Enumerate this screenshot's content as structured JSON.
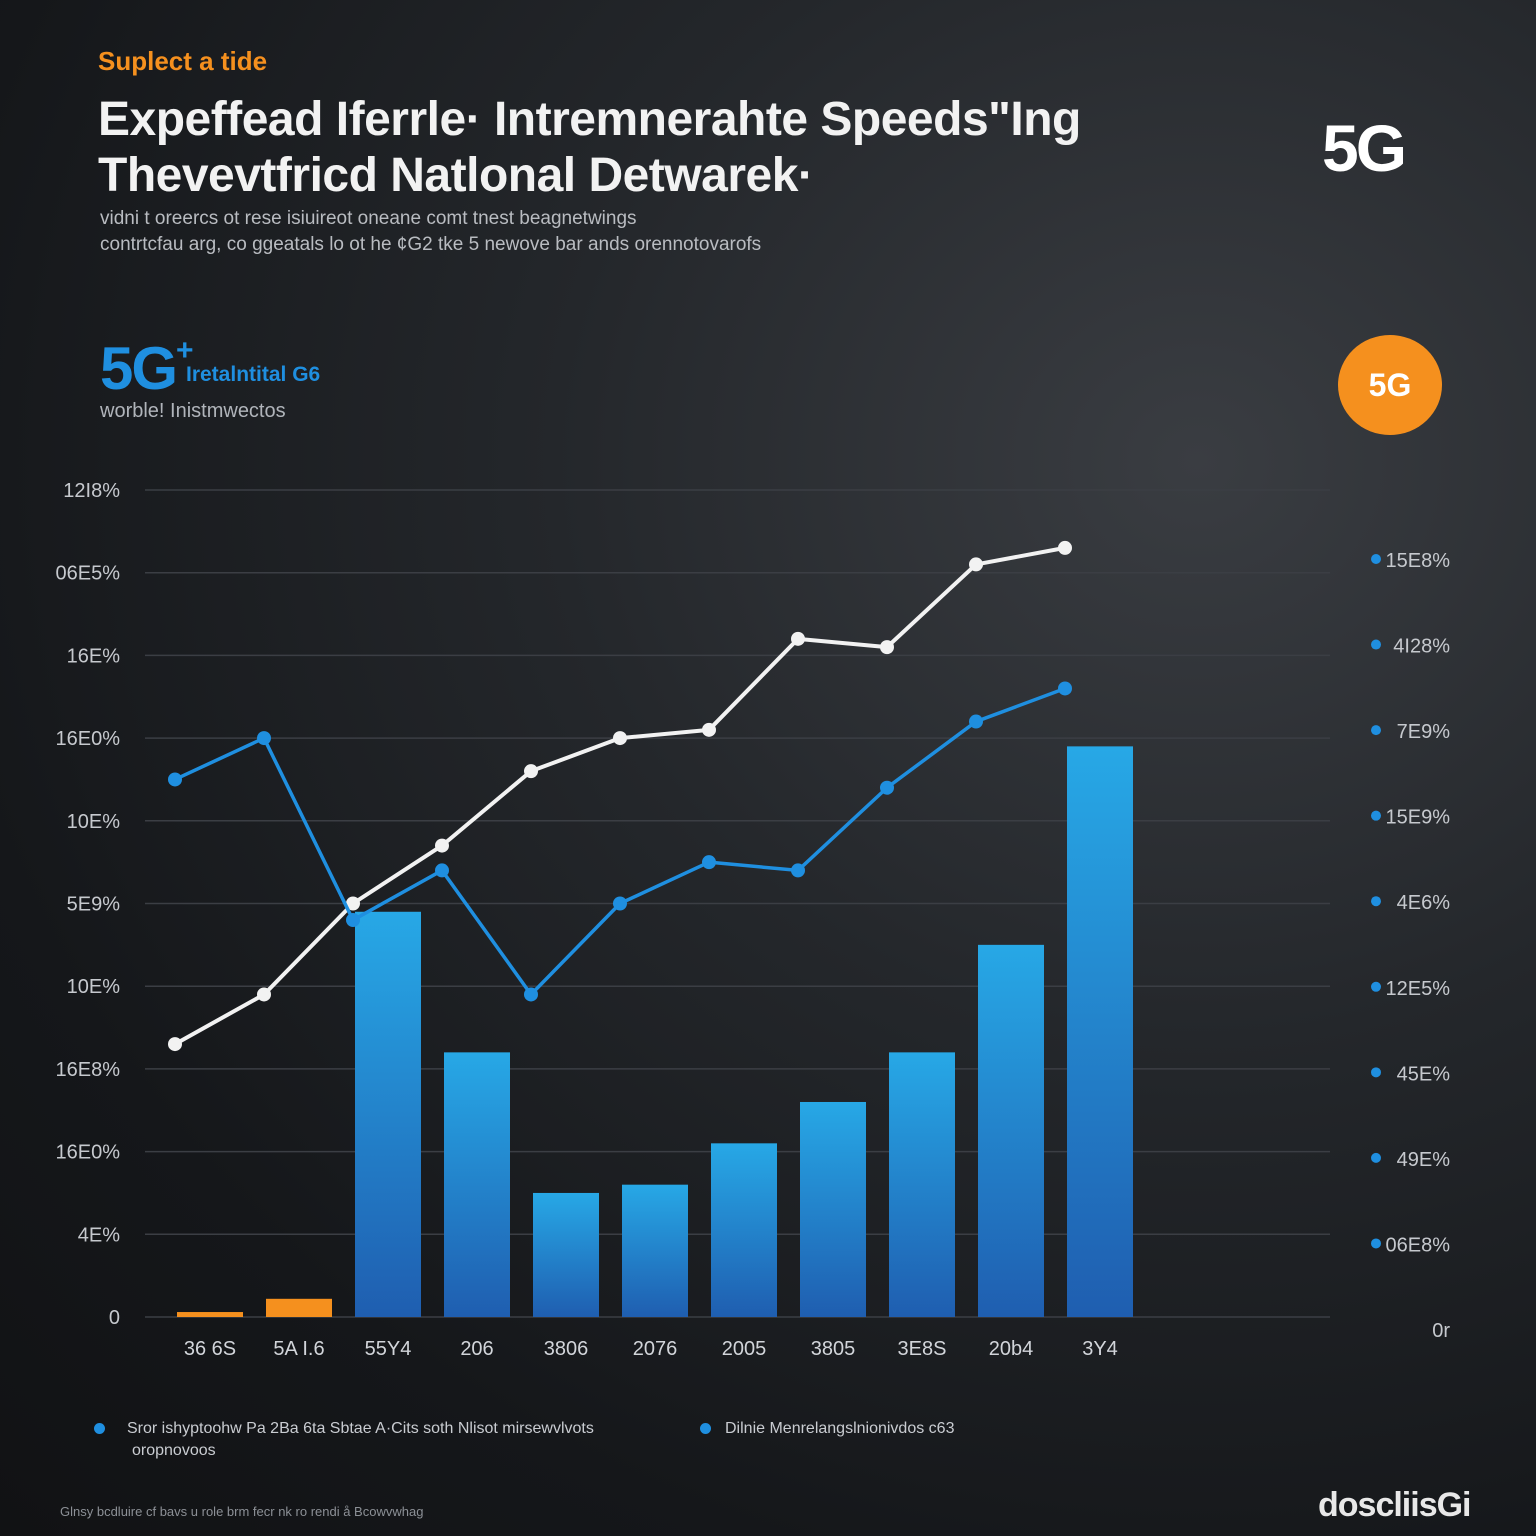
{
  "header": {
    "kicker": "Suplect a tide",
    "title_line1": "Expeffead Iferrle· Intremnerahte Speeds\"Ing",
    "title_line2": "Thevevtfricd Natlonal Detwarek·",
    "subtitle_line1": "vidni t oreercs ot rese isiuireot oneane comt tnest beagnetwings",
    "subtitle_line2": "contrtcfau arg, co ggeatals lo ot he ¢G2 tke 5 newove bar ands orennotovarofs",
    "logo_top": "5G",
    "badge_label": "5G"
  },
  "brand": {
    "mark": "5G",
    "plus": "+",
    "name": "Iretalntital G6",
    "tagline": "worble! Inistmwectos"
  },
  "colors": {
    "accent_orange": "#f5901e",
    "accent_blue": "#1f8fe0",
    "bar_top": "#27a8e6",
    "bar_bottom": "#1f5eb0",
    "white_line": "#f2f2f2",
    "grid": "#3b3e44"
  },
  "chart_data": {
    "type": "bar",
    "y_tick_labels": [
      "12I8%",
      "06E5%",
      "16E%",
      "16E0%",
      "10E%",
      "5E9%",
      "10E%",
      "16E8%",
      "16E0%",
      "4E%",
      "0"
    ],
    "right_tick_labels": [
      "15E8%",
      "4I28%",
      "7E9%",
      "15E9%",
      "4E6%",
      "12E5%",
      "45E%",
      "49E%",
      "06E8%",
      "0r"
    ],
    "categories": [
      "36 6S",
      "5A I.6",
      "55Y4",
      "206",
      "3806",
      "2076",
      "2005",
      "3805",
      "3E8S",
      "20b4",
      "3Y4"
    ],
    "ylim": [
      0,
      100
    ],
    "series": [
      {
        "values": [
          0.6,
          2.2,
          49,
          32,
          15,
          16,
          21,
          26,
          32,
          45,
          69
        ]
      }
    ],
    "lines": [
      {
        "x": [
          1,
          2,
          3,
          4,
          5,
          6,
          7,
          8,
          9,
          10,
          11
        ],
        "values": [
          33,
          39,
          50,
          57,
          66,
          70,
          71,
          82,
          81,
          91,
          93
        ]
      },
      {
        "x": [
          1,
          2,
          3,
          4,
          5,
          6,
          7,
          8,
          9,
          10,
          11
        ],
        "values": [
          65,
          70,
          48,
          54,
          39,
          50,
          55,
          54,
          64,
          72,
          76
        ]
      }
    ]
  },
  "legend": {
    "item_a_line1": "Sror ishyptoohw Pa 2Ba 6ta Sbtae A·Cits soth Nlisot mirsewvlvots",
    "item_a_line2": "oropnovoos",
    "item_b": "Dilnie Menrelangslnionivdos c63"
  },
  "footer": {
    "note": "Glnsy bcdluire cf bavs u role brm fecr nk ro rendi å Bcowvwhag",
    "brand": "doscliisGi"
  }
}
